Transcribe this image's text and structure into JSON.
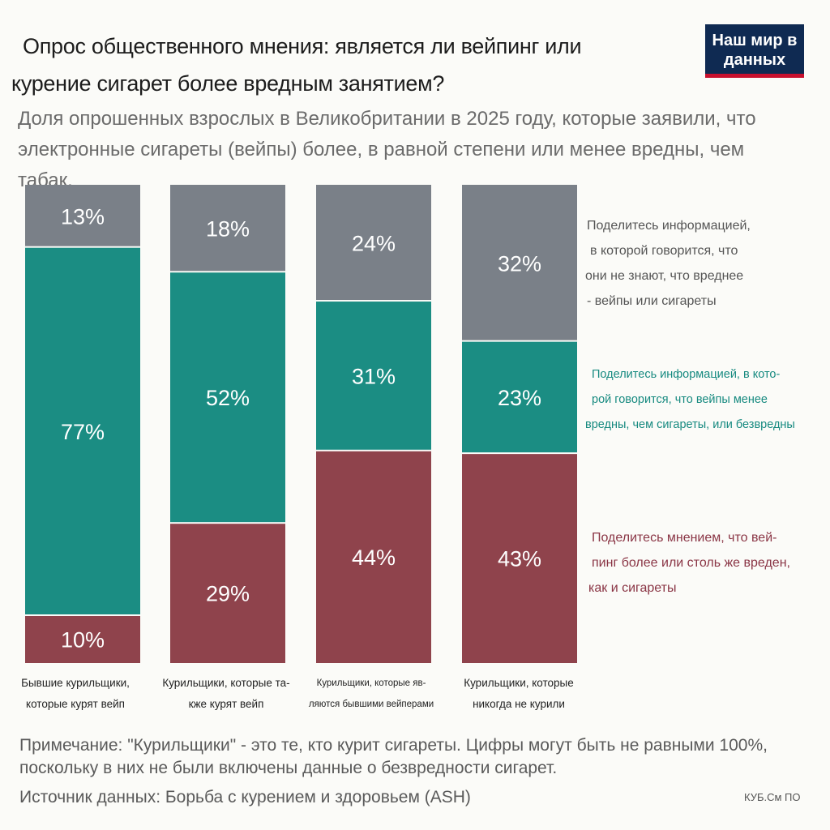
{
  "header": {
    "title_line1": "Опрос общественного мнения: является ли вейпинг или",
    "title_line2": "курение сигарет более вредным занятием?",
    "subtitle": "Доля опрошенных взрослых в Великобритании в 2025 году, которые заявили, что электронные сигареты (вейпы) более, в равной степени или менее вредны, чем табак.",
    "logo_text": "Наш мир в данных"
  },
  "colors": {
    "unknown": "#7a8088",
    "less_harmful": "#1b8d83",
    "more_harmful": "#8f434c",
    "logo_bg": "#0f2a52",
    "logo_accent": "#c8102e"
  },
  "chart_data": {
    "type": "bar",
    "stacked": true,
    "title": "Опрос общественного мнения: является ли вейпинг или курение сигарет более вредным занятием?",
    "categories": [
      "Бывшие курильщики, которые курят вейп",
      "Курильщики, которые также курят вейп",
      "Курильщики, которые являются бывшими вейперами",
      "Курильщики, которые никогда не курили"
    ],
    "series": [
      {
        "key": "more_harmful",
        "values": [
          10,
          29,
          44,
          43
        ]
      },
      {
        "key": "less_harmful",
        "values": [
          77,
          52,
          31,
          23
        ]
      },
      {
        "key": "unknown",
        "values": [
          13,
          18,
          24,
          32
        ]
      }
    ],
    "value_labels": [
      [
        "10%",
        "29%",
        "44%",
        "43%"
      ],
      [
        "77%",
        "52%",
        "31%",
        "23%"
      ],
      [
        "13%",
        "18%",
        "24%",
        "32%"
      ]
    ],
    "ylim": [
      0,
      100
    ]
  },
  "legend": {
    "unknown": [
      "Поделитесь информацией,",
      "в которой говорится, что",
      "они не знают, что вреднее",
      "- вейпы или сигареты"
    ],
    "less_harmful": [
      "Поделитесь информацией, в кото-",
      "рой говорится, что вейпы менее",
      "вредны, чем сигареты, или безвредны"
    ],
    "more_harmful": [
      "Поделитесь мнением, что вей-",
      "пинг более или столь же вреден,",
      "как и сигареты"
    ]
  },
  "category_labels": [
    [
      "Бывшие курильщики,",
      "которые курят вейп"
    ],
    [
      "Курильщики, которые та-",
      "кже курят вейп"
    ],
    [
      "Курильщики, которые яв-",
      "ляются бывшими вейперами"
    ],
    [
      "Курильщики, которые",
      "никогда не курили"
    ]
  ],
  "footer": {
    "note": "Примечание: \"Курильщики\" - это те, кто курит сигареты. Цифры могут быть не равными 100%, поскольку в них не были включены данные о безвредности сигарет.",
    "source": "Источник данных: Борьба с курением и здоровьем (ASH)",
    "credit": "КУБ.См ПО"
  }
}
